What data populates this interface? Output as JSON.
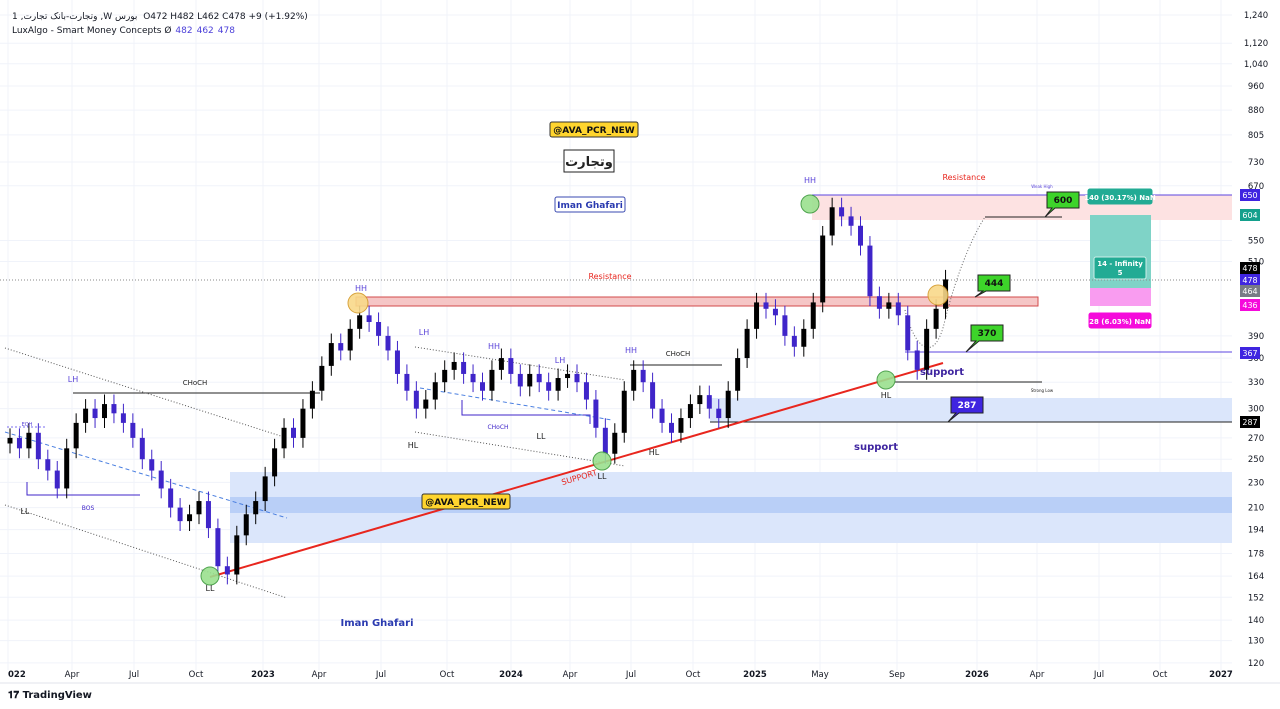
{
  "header": {
    "symbol_line": "1 ,وتجارت-بانک تجارت ,W بورس",
    "ohlc": "O472  H482  L462  C478  +9 (+1.92%)",
    "indicator_name": "LuxAlgo - Smart Money Concepts",
    "indicator_icon": "eye-slash-icon",
    "indicator_values": [
      "482",
      "462",
      "478"
    ]
  },
  "branding": {
    "logo": "TradingView"
  },
  "colors": {
    "up": "#000000",
    "down": "#3f25c9",
    "support_zone": "#dbe6fb",
    "resistance_zone": "#fde2e2",
    "trendline": "#e8261e",
    "target": "#22ab94",
    "stop": "#f50adb"
  },
  "annotations": {
    "watermark1": "@AVA_PCR_NEW",
    "watermark2": "@AVA_PCR_NEW",
    "symbol_box": "وتجارت",
    "author1": "Iman Ghafari",
    "author2": "Iman Ghafari",
    "resistance1": "Resistance",
    "resistance2": "Resistance",
    "support1": "support",
    "support2": "support",
    "support_trend": "SUPPORT",
    "weak_high": "Weak High",
    "strong_low": "Strong Low",
    "structure": [
      {
        "t": "LH"
      },
      {
        "t": "EQH"
      },
      {
        "t": "BOS"
      },
      {
        "t": "LL"
      },
      {
        "t": "CHoCH"
      },
      {
        "t": "LL"
      },
      {
        "t": "HH"
      },
      {
        "t": "LH"
      },
      {
        "t": "HH"
      },
      {
        "t": "LH"
      },
      {
        "t": "HH"
      },
      {
        "t": "CHoCH"
      },
      {
        "t": "HL"
      },
      {
        "t": "CHoCH"
      },
      {
        "t": "LL"
      },
      {
        "t": "LL"
      },
      {
        "t": "HL"
      },
      {
        "t": "HH"
      },
      {
        "t": "HL"
      }
    ],
    "callouts": [
      "600",
      "444",
      "370",
      "287"
    ],
    "position": {
      "target_label": "140 (30.17%) NaN",
      "center_label_1": "14 - Infinity",
      "center_label_2": "5",
      "stop_label": "28 (6.03%) NaN"
    }
  },
  "price_tags": [
    {
      "v": "650",
      "c": "#3f25e0"
    },
    {
      "v": "604",
      "c": "#14a08c"
    },
    {
      "v": "478",
      "c": "#000000"
    },
    {
      "v": "478",
      "c": "#3f25e0"
    },
    {
      "v": "464",
      "c": "#787b86"
    },
    {
      "v": "436",
      "c": "#f50adb"
    },
    {
      "v": "367",
      "c": "#3f25e0"
    },
    {
      "v": "287",
      "c": "#000000"
    }
  ],
  "chart_data": {
    "type": "candlestick",
    "timeframe": "W",
    "scale": "log",
    "ylim": [
      120,
      1240
    ],
    "y_ticks": [
      "1,240",
      "1,120",
      "1,040",
      "960",
      "880",
      "805",
      "730",
      "670",
      "550",
      "510",
      "390",
      "360",
      "330",
      "300",
      "270",
      "250",
      "230",
      "210",
      "194",
      "178",
      "164",
      "152",
      "140",
      "130",
      "120"
    ],
    "x_ticks": [
      "022",
      "Apr",
      "Jul",
      "Oct",
      "2023",
      "Apr",
      "Jul",
      "Oct",
      "2024",
      "Apr",
      "Jul",
      "Oct",
      "2025",
      "May",
      "Sep",
      "2026",
      "Apr",
      "Jul",
      "Oct",
      "2027"
    ],
    "close_biweekly_2022_to_2025": [
      270,
      260,
      275,
      250,
      240,
      225,
      260,
      285,
      300,
      290,
      305,
      295,
      285,
      270,
      250,
      240,
      225,
      210,
      200,
      205,
      215,
      195,
      170,
      165,
      190,
      205,
      215,
      235,
      260,
      280,
      270,
      300,
      320,
      350,
      380,
      370,
      400,
      420,
      410,
      390,
      370,
      340,
      320,
      300,
      310,
      330,
      345,
      355,
      340,
      330,
      320,
      345,
      360,
      340,
      325,
      340,
      330,
      320,
      335,
      340,
      330,
      310,
      280,
      255,
      275,
      320,
      345,
      330,
      300,
      285,
      275,
      290,
      305,
      315,
      300,
      290,
      320,
      360,
      400,
      440,
      430,
      420,
      390,
      375,
      400,
      440,
      560,
      620,
      600,
      580,
      540,
      450,
      430,
      440,
      420,
      370,
      345,
      400,
      430,
      478
    ],
    "last": {
      "open": 472,
      "high": 482,
      "low": 462,
      "close": 478
    }
  }
}
